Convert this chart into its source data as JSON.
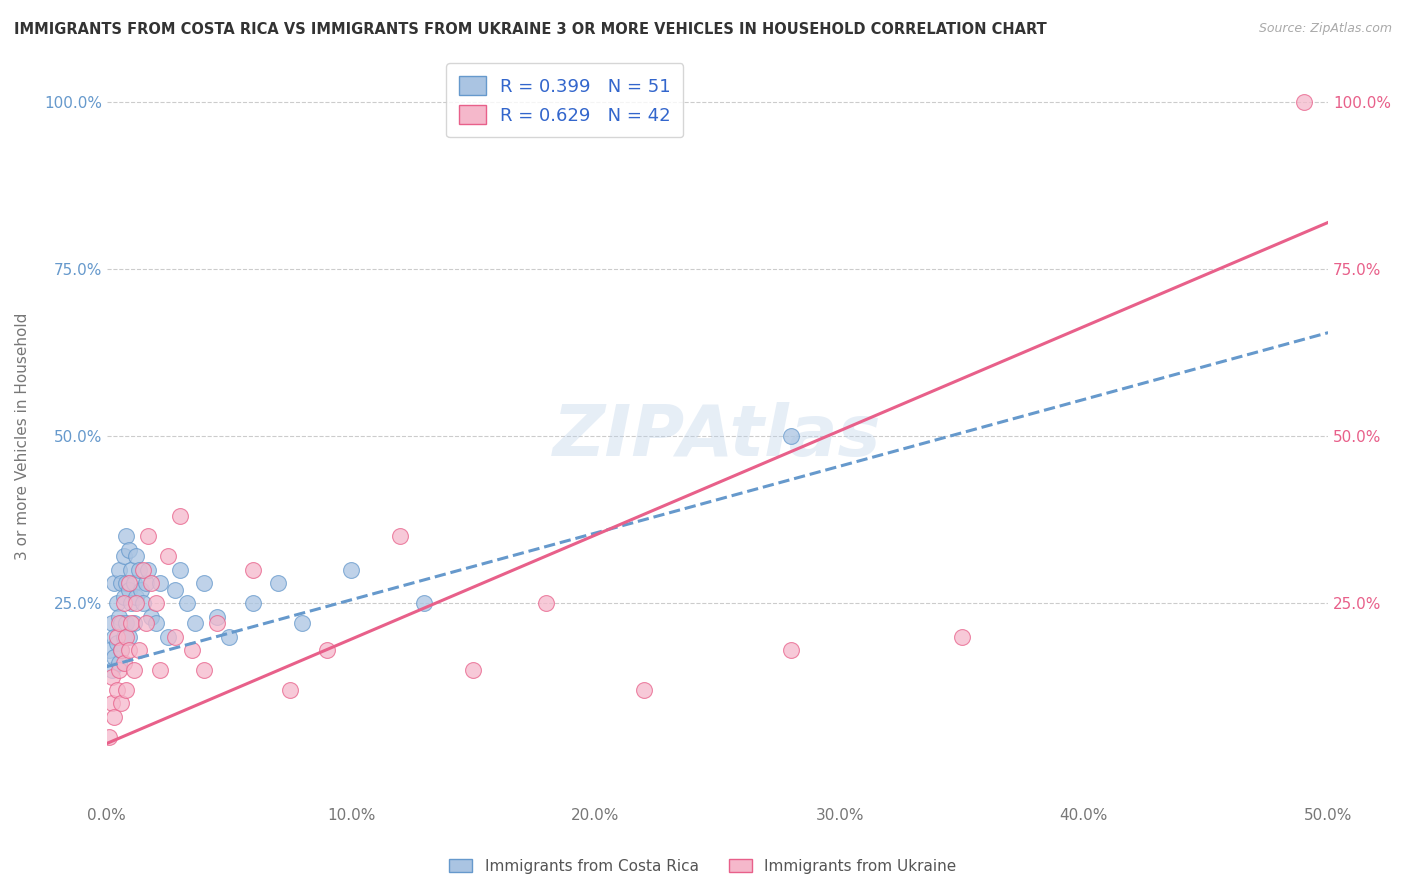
{
  "title": "IMMIGRANTS FROM COSTA RICA VS IMMIGRANTS FROM UKRAINE 3 OR MORE VEHICLES IN HOUSEHOLD CORRELATION CHART",
  "source": "Source: ZipAtlas.com",
  "ylabel": "3 or more Vehicles in Household",
  "xlim": [
    0.0,
    0.5
  ],
  "ylim": [
    -0.05,
    1.05
  ],
  "xtick_labels": [
    "0.0%",
    "10.0%",
    "20.0%",
    "30.0%",
    "40.0%",
    "50.0%"
  ],
  "xtick_vals": [
    0.0,
    0.1,
    0.2,
    0.3,
    0.4,
    0.5
  ],
  "ytick_labels": [
    "25.0%",
    "50.0%",
    "75.0%",
    "100.0%"
  ],
  "ytick_vals": [
    0.25,
    0.5,
    0.75,
    1.0
  ],
  "legend_bottom": [
    "Immigrants from Costa Rica",
    "Immigrants from Ukraine"
  ],
  "R_costa_rica": 0.399,
  "N_costa_rica": 51,
  "R_ukraine": 0.629,
  "N_ukraine": 42,
  "costa_rica_color": "#aac4e2",
  "ukraine_color": "#f5b8cb",
  "costa_rica_line_color": "#6699cc",
  "ukraine_line_color": "#e8608a",
  "background_color": "#ffffff",
  "watermark": "ZIPAtlas",
  "costa_rica_x": [
    0.001,
    0.002,
    0.002,
    0.003,
    0.003,
    0.003,
    0.004,
    0.004,
    0.005,
    0.005,
    0.005,
    0.006,
    0.006,
    0.006,
    0.007,
    0.007,
    0.007,
    0.008,
    0.008,
    0.008,
    0.009,
    0.009,
    0.009,
    0.01,
    0.01,
    0.011,
    0.011,
    0.012,
    0.012,
    0.013,
    0.014,
    0.015,
    0.016,
    0.017,
    0.018,
    0.02,
    0.022,
    0.025,
    0.028,
    0.03,
    0.033,
    0.036,
    0.04,
    0.045,
    0.05,
    0.06,
    0.07,
    0.08,
    0.1,
    0.13,
    0.28
  ],
  "costa_rica_y": [
    0.18,
    0.22,
    0.15,
    0.28,
    0.2,
    0.17,
    0.25,
    0.19,
    0.3,
    0.23,
    0.16,
    0.28,
    0.22,
    0.18,
    0.32,
    0.26,
    0.2,
    0.35,
    0.28,
    0.22,
    0.33,
    0.27,
    0.2,
    0.3,
    0.25,
    0.28,
    0.22,
    0.32,
    0.26,
    0.3,
    0.27,
    0.25,
    0.28,
    0.3,
    0.23,
    0.22,
    0.28,
    0.2,
    0.27,
    0.3,
    0.25,
    0.22,
    0.28,
    0.23,
    0.2,
    0.25,
    0.28,
    0.22,
    0.3,
    0.25,
    0.5
  ],
  "ukraine_x": [
    0.001,
    0.002,
    0.002,
    0.003,
    0.004,
    0.004,
    0.005,
    0.005,
    0.006,
    0.006,
    0.007,
    0.007,
    0.008,
    0.008,
    0.009,
    0.009,
    0.01,
    0.011,
    0.012,
    0.013,
    0.015,
    0.016,
    0.017,
    0.018,
    0.02,
    0.022,
    0.025,
    0.028,
    0.03,
    0.035,
    0.04,
    0.045,
    0.06,
    0.075,
    0.09,
    0.12,
    0.15,
    0.18,
    0.22,
    0.28,
    0.35,
    0.49
  ],
  "ukraine_y": [
    0.05,
    0.1,
    0.14,
    0.08,
    0.12,
    0.2,
    0.15,
    0.22,
    0.18,
    0.1,
    0.25,
    0.16,
    0.2,
    0.12,
    0.28,
    0.18,
    0.22,
    0.15,
    0.25,
    0.18,
    0.3,
    0.22,
    0.35,
    0.28,
    0.25,
    0.15,
    0.32,
    0.2,
    0.38,
    0.18,
    0.15,
    0.22,
    0.3,
    0.12,
    0.18,
    0.35,
    0.15,
    0.25,
    0.12,
    0.18,
    0.2,
    1.0
  ],
  "cr_line_x0": 0.0,
  "cr_line_y0": 0.155,
  "cr_line_x1": 0.5,
  "cr_line_y1": 0.655,
  "uk_line_x0": 0.0,
  "uk_line_y0": 0.04,
  "uk_line_x1": 0.5,
  "uk_line_y1": 0.82
}
